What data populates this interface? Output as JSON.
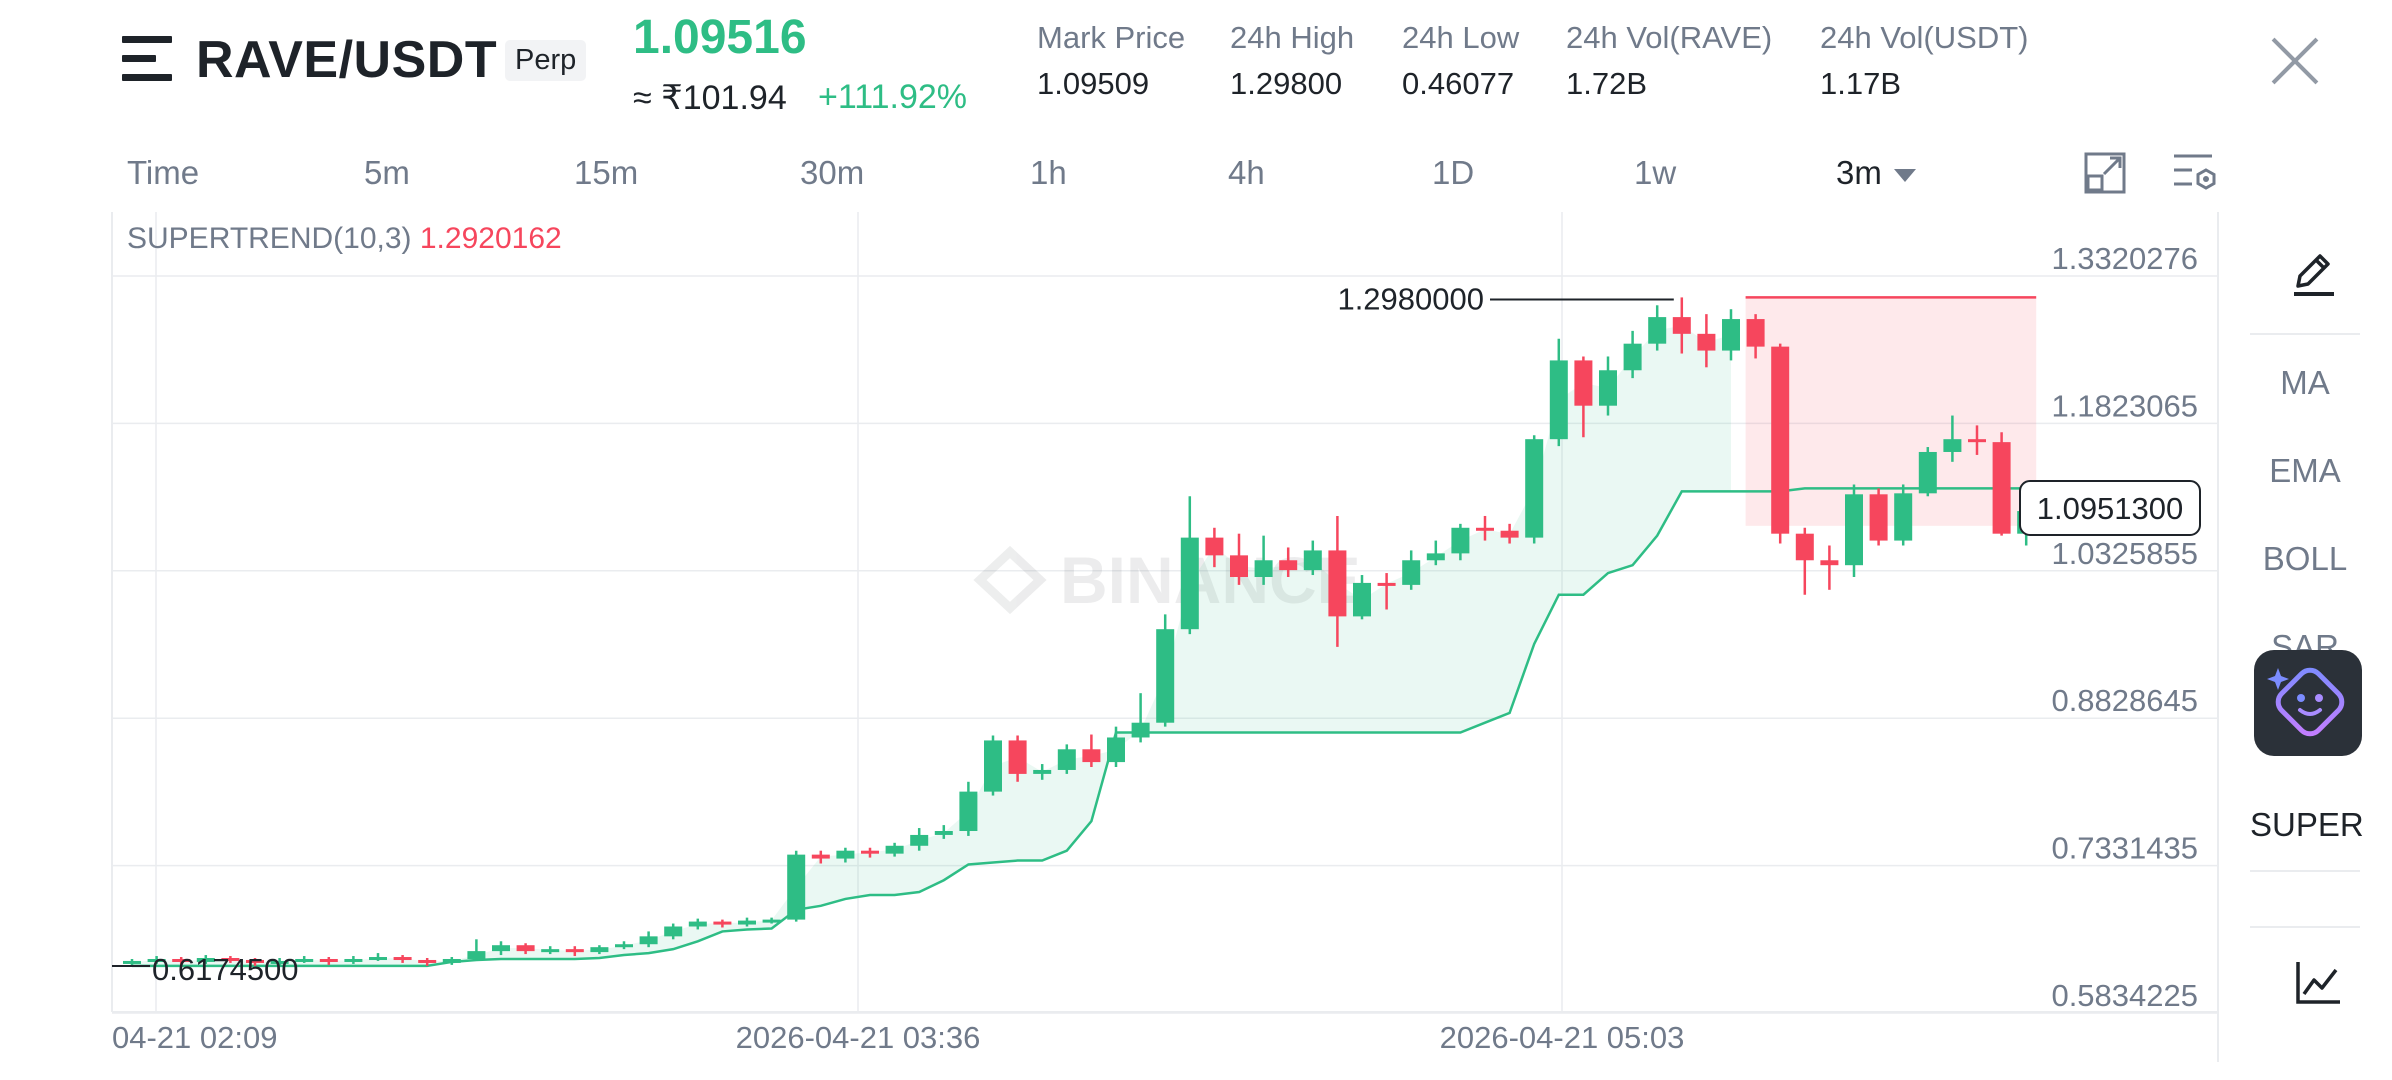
{
  "header": {
    "pair": "RAVE/USDT",
    "contract_type": "Perp",
    "last_price": "1.09516",
    "fiat_price": "≈ ₹101.94",
    "change_pct": "+111.92%",
    "stats": [
      {
        "label": "Mark Price",
        "value": "1.09509"
      },
      {
        "label": "24h High",
        "value": "1.29800"
      },
      {
        "label": "24h Low",
        "value": "0.46077"
      },
      {
        "label": "24h Vol(RAVE)",
        "value": "1.72B"
      },
      {
        "label": "24h Vol(USDT)",
        "value": "1.17B"
      }
    ]
  },
  "timeframes": [
    "Time",
    "5m",
    "15m",
    "30m",
    "1h",
    "4h",
    "1D",
    "1w"
  ],
  "selected_timeframe": "3m",
  "toolbar_icons": [
    "chart-settings-icon",
    "indicator-settings-icon"
  ],
  "sidebar": {
    "items": [
      "MA",
      "EMA",
      "BOLL",
      "SAR",
      "SUPER"
    ],
    "active": "SUPER",
    "icons": [
      "draw-pencil-icon",
      "ai-assistant-icon",
      "chart-line-icon"
    ]
  },
  "indicator": {
    "name": "SUPERTREND(10,3)",
    "value": "1.2920162"
  },
  "colors": {
    "up": "#2ebd85",
    "down": "#f6465d",
    "grid": "#eaecef",
    "text_muted": "#707a8a"
  },
  "watermark": "BINANCE",
  "chart_data": {
    "type": "candlestick",
    "y_axis_ticks": [
      "1.3320276",
      "1.1823065",
      "1.0325855",
      "0.8828645",
      "0.7331435",
      "0.5834225"
    ],
    "y_axis_values": [
      1.3320276,
      1.1823065,
      1.0325855,
      0.8828645,
      0.7331435,
      0.5834225
    ],
    "x_axis_ticks": [
      "04-21 02:09",
      "2026-04-21 03:36",
      "2026-04-21 05:03"
    ],
    "current_price_label": "1.0951300",
    "current_price": 1.09513,
    "high_label": "1.2980000",
    "high": 1.298,
    "low_label": "0.6174500",
    "low": 0.61745,
    "candles": [
      [
        0.615,
        0.618,
        0.612,
        0.62
      ],
      [
        0.618,
        0.62,
        0.615,
        0.623
      ],
      [
        0.62,
        0.617,
        0.614,
        0.622
      ],
      [
        0.617,
        0.621,
        0.615,
        0.624
      ],
      [
        0.621,
        0.619,
        0.616,
        0.623
      ],
      [
        0.619,
        0.616,
        0.613,
        0.621
      ],
      [
        0.616,
        0.618,
        0.614,
        0.621
      ],
      [
        0.618,
        0.62,
        0.616,
        0.623
      ],
      [
        0.62,
        0.617,
        0.614,
        0.622
      ],
      [
        0.617,
        0.62,
        0.615,
        0.623
      ],
      [
        0.62,
        0.622,
        0.618,
        0.626
      ],
      [
        0.622,
        0.619,
        0.616,
        0.624
      ],
      [
        0.619,
        0.616,
        0.613,
        0.621
      ],
      [
        0.616,
        0.62,
        0.614,
        0.622
      ],
      [
        0.62,
        0.628,
        0.618,
        0.64
      ],
      [
        0.628,
        0.634,
        0.624,
        0.638
      ],
      [
        0.634,
        0.628,
        0.625,
        0.636
      ],
      [
        0.628,
        0.63,
        0.625,
        0.633
      ],
      [
        0.63,
        0.627,
        0.623,
        0.633
      ],
      [
        0.627,
        0.632,
        0.625,
        0.634
      ],
      [
        0.632,
        0.635,
        0.63,
        0.638
      ],
      [
        0.635,
        0.643,
        0.632,
        0.648
      ],
      [
        0.643,
        0.653,
        0.64,
        0.656
      ],
      [
        0.653,
        0.658,
        0.65,
        0.661
      ],
      [
        0.658,
        0.655,
        0.652,
        0.66
      ],
      [
        0.655,
        0.659,
        0.653,
        0.662
      ],
      [
        0.659,
        0.66,
        0.656,
        0.662
      ],
      [
        0.66,
        0.726,
        0.658,
        0.73
      ],
      [
        0.726,
        0.722,
        0.717,
        0.73
      ],
      [
        0.722,
        0.73,
        0.718,
        0.733
      ],
      [
        0.73,
        0.727,
        0.723,
        0.733
      ],
      [
        0.727,
        0.735,
        0.724,
        0.738
      ],
      [
        0.735,
        0.746,
        0.73,
        0.753
      ],
      [
        0.746,
        0.75,
        0.742,
        0.756
      ],
      [
        0.75,
        0.79,
        0.745,
        0.8
      ],
      [
        0.79,
        0.842,
        0.786,
        0.847
      ],
      [
        0.842,
        0.808,
        0.8,
        0.847
      ],
      [
        0.808,
        0.812,
        0.802,
        0.818
      ],
      [
        0.812,
        0.833,
        0.808,
        0.838
      ],
      [
        0.833,
        0.82,
        0.815,
        0.848
      ],
      [
        0.82,
        0.845,
        0.815,
        0.856
      ],
      [
        0.845,
        0.86,
        0.84,
        0.89
      ],
      [
        0.86,
        0.955,
        0.856,
        0.97
      ],
      [
        0.955,
        1.048,
        0.95,
        1.09
      ],
      [
        1.048,
        1.03,
        1.018,
        1.058
      ],
      [
        1.03,
        1.008,
        1.0,
        1.052
      ],
      [
        1.008,
        1.025,
        1.0,
        1.05
      ],
      [
        1.025,
        1.015,
        1.008,
        1.038
      ],
      [
        1.015,
        1.035,
        1.01,
        1.045
      ],
      [
        1.035,
        0.968,
        0.937,
        1.07
      ],
      [
        0.968,
        1.002,
        0.965,
        1.01
      ],
      [
        1.002,
        1.0,
        0.975,
        1.012
      ],
      [
        1.0,
        1.025,
        0.995,
        1.035
      ],
      [
        1.025,
        1.032,
        1.02,
        1.045
      ],
      [
        1.032,
        1.058,
        1.025,
        1.062
      ],
      [
        1.058,
        1.055,
        1.045,
        1.07
      ],
      [
        1.055,
        1.048,
        1.042,
        1.062
      ],
      [
        1.048,
        1.148,
        1.042,
        1.152
      ],
      [
        1.148,
        1.228,
        1.141,
        1.25
      ],
      [
        1.228,
        1.182,
        1.15,
        1.232
      ],
      [
        1.182,
        1.218,
        1.172,
        1.232
      ],
      [
        1.218,
        1.245,
        1.21,
        1.258
      ],
      [
        1.245,
        1.272,
        1.238,
        1.284
      ],
      [
        1.272,
        1.255,
        1.235,
        1.292
      ],
      [
        1.255,
        1.238,
        1.221,
        1.275
      ],
      [
        1.238,
        1.27,
        1.228,
        1.28
      ],
      [
        1.27,
        1.242,
        1.23,
        1.275
      ],
      [
        1.242,
        1.052,
        1.042,
        1.245
      ],
      [
        1.052,
        1.025,
        0.99,
        1.058
      ],
      [
        1.025,
        1.02,
        0.995,
        1.04
      ],
      [
        1.02,
        1.092,
        1.008,
        1.102
      ],
      [
        1.092,
        1.045,
        1.04,
        1.098
      ],
      [
        1.045,
        1.093,
        1.04,
        1.102
      ],
      [
        1.093,
        1.135,
        1.09,
        1.14
      ],
      [
        1.135,
        1.148,
        1.125,
        1.172
      ],
      [
        1.148,
        1.145,
        1.132,
        1.162
      ],
      [
        1.145,
        1.052,
        1.05,
        1.155
      ],
      [
        1.052,
        1.075,
        1.04,
        1.082
      ]
    ],
    "supertrend": [
      0.613,
      0.613,
      0.613,
      0.613,
      0.613,
      0.613,
      0.613,
      0.613,
      0.613,
      0.613,
      0.613,
      0.613,
      0.613,
      0.617,
      0.619,
      0.62,
      0.62,
      0.62,
      0.62,
      0.621,
      0.624,
      0.626,
      0.63,
      0.638,
      0.648,
      0.65,
      0.651,
      0.67,
      0.674,
      0.681,
      0.685,
      0.685,
      0.688,
      0.7,
      0.716,
      0.718,
      0.72,
      0.72,
      0.73,
      0.76,
      0.85,
      0.85,
      0.85,
      0.85,
      0.85,
      0.85,
      0.85,
      0.85,
      0.85,
      0.85,
      0.85,
      0.85,
      0.85,
      0.85,
      0.85,
      0.86,
      0.87,
      0.94,
      0.99,
      0.99,
      1.012,
      1.02,
      1.05,
      1.095,
      1.095,
      1.095,
      1.095,
      1.095,
      1.098,
      1.098,
      1.098,
      1.098,
      1.098,
      1.098,
      1.098,
      1.098,
      1.098,
      1.098
    ],
    "highlight_zone": {
      "y_top": 1.292,
      "from_index": 66,
      "to_index": 77
    }
  }
}
